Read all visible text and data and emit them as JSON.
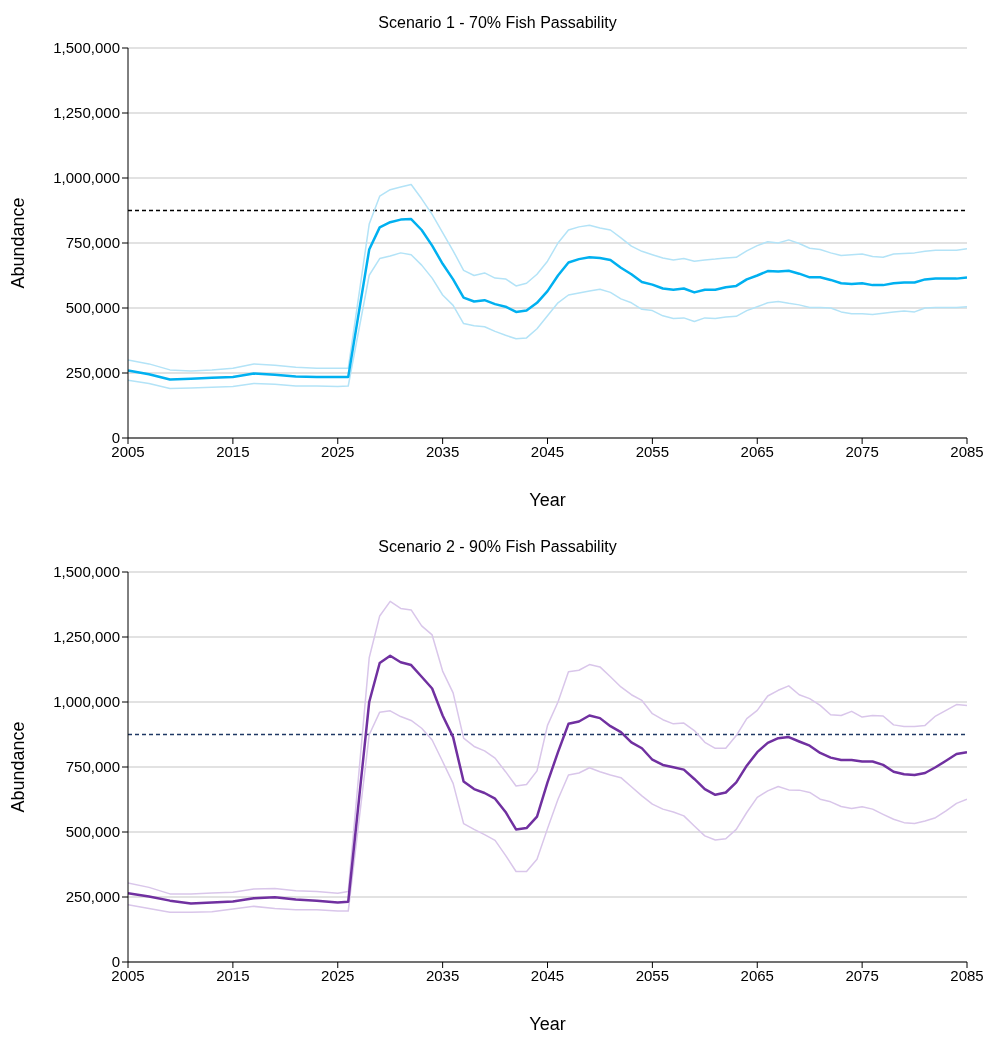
{
  "chart_data": [
    {
      "type": "line",
      "title": "Scenario 1 - 70% Fish Passability",
      "xlabel": "Year",
      "ylabel": "Abundance",
      "x": [
        2005,
        2007,
        2009,
        2011,
        2013,
        2015,
        2017,
        2019,
        2021,
        2023,
        2025,
        2026,
        2028,
        2029,
        2030,
        2031,
        2032,
        2033,
        2034,
        2035,
        2036,
        2037,
        2038,
        2039,
        2040,
        2041,
        2042,
        2043,
        2044,
        2045,
        2046,
        2047,
        2048,
        2049,
        2050,
        2051,
        2052,
        2053,
        2054,
        2055,
        2056,
        2057,
        2058,
        2059,
        2060,
        2061,
        2062,
        2063,
        2064,
        2065,
        2066,
        2067,
        2068,
        2069,
        2070,
        2071,
        2072,
        2073,
        2074,
        2075,
        2076,
        2077,
        2078,
        2079,
        2080,
        2081,
        2082,
        2083,
        2084,
        2085
      ],
      "series": [
        {
          "color": "#00b0f0",
          "values": [
            260000,
            245000,
            225000,
            228000,
            232000,
            235000,
            248000,
            243000,
            237000,
            235000,
            235000,
            235000,
            725000,
            810000,
            830000,
            840000,
            842000,
            800000,
            740000,
            670000,
            610000,
            540000,
            525000,
            530000,
            515000,
            505000,
            485000,
            490000,
            520000,
            565000,
            625000,
            675000,
            688000,
            695000,
            692000,
            685000,
            655000,
            630000,
            600000,
            590000,
            575000,
            570000,
            575000,
            560000,
            570000,
            570000,
            580000,
            585000,
            610000,
            625000,
            642000,
            640000,
            643000,
            632000,
            618000,
            618000,
            608000,
            595000,
            592000,
            595000,
            588000,
            588000,
            595000,
            598000,
            598000,
            610000,
            613000,
            613000,
            613000,
            617000
          ]
        },
        {
          "color": "#b3e3f7",
          "values": [
            300000,
            285000,
            262000,
            258000,
            262000,
            268000,
            285000,
            280000,
            272000,
            268000,
            268000,
            268000,
            823000,
            930000,
            955000,
            965000,
            975000,
            920000,
            860000,
            790000,
            720000,
            645000,
            625000,
            635000,
            615000,
            612000,
            585000,
            595000,
            630000,
            680000,
            750000,
            800000,
            812000,
            818000,
            808000,
            800000,
            770000,
            738000,
            718000,
            705000,
            692000,
            685000,
            690000,
            680000,
            685000,
            688000,
            692000,
            695000,
            720000,
            740000,
            755000,
            750000,
            762000,
            748000,
            730000,
            725000,
            712000,
            702000,
            705000,
            708000,
            698000,
            695000,
            708000,
            710000,
            712000,
            718000,
            722000,
            722000,
            722000,
            728000
          ]
        },
        {
          "color": "#b3e3f7",
          "values": [
            222000,
            210000,
            190000,
            192000,
            195000,
            198000,
            210000,
            207000,
            200000,
            200000,
            198000,
            200000,
            626000,
            690000,
            700000,
            712000,
            705000,
            665000,
            615000,
            550000,
            510000,
            440000,
            432000,
            428000,
            410000,
            395000,
            382000,
            385000,
            420000,
            470000,
            520000,
            550000,
            558000,
            565000,
            572000,
            560000,
            535000,
            520000,
            495000,
            490000,
            470000,
            460000,
            462000,
            448000,
            462000,
            460000,
            465000,
            468000,
            490000,
            505000,
            520000,
            525000,
            518000,
            512000,
            502000,
            502000,
            500000,
            485000,
            478000,
            478000,
            475000,
            480000,
            485000,
            488000,
            485000,
            500000,
            502000,
            502000,
            502000,
            505000
          ]
        }
      ],
      "xlim": [
        2005,
        2085
      ],
      "xticks": [
        2005,
        2015,
        2025,
        2035,
        2045,
        2055,
        2065,
        2075,
        2085
      ],
      "ylim": [
        0,
        1500000
      ],
      "yticks": [
        {
          "value": 0,
          "label": "0"
        },
        {
          "value": 250000,
          "label": "250,000"
        },
        {
          "value": 500000,
          "label": "500,000"
        },
        {
          "value": 750000,
          "label": "750,000"
        },
        {
          "value": 1000000,
          "label": "1,000,000"
        },
        {
          "value": 1250000,
          "label": "1,250,000"
        },
        {
          "value": 1500000,
          "label": "1,500,000"
        }
      ],
      "grid": "y",
      "ref_lines": [
        {
          "axis": "y",
          "value": 875000,
          "color": "#000000",
          "line_style": "dashed"
        }
      ]
    },
    {
      "type": "line",
      "title": "Scenario 2 - 90% Fish Passability",
      "xlabel": "Year",
      "ylabel": "Abundance",
      "x": [
        2005,
        2007,
        2009,
        2011,
        2013,
        2015,
        2017,
        2019,
        2021,
        2023,
        2025,
        2026,
        2028,
        2029,
        2030,
        2031,
        2032,
        2033,
        2034,
        2035,
        2036,
        2037,
        2038,
        2039,
        2040,
        2041,
        2042,
        2043,
        2044,
        2045,
        2046,
        2047,
        2048,
        2049,
        2050,
        2051,
        2052,
        2053,
        2054,
        2055,
        2056,
        2057,
        2058,
        2059,
        2060,
        2061,
        2062,
        2063,
        2064,
        2065,
        2066,
        2067,
        2068,
        2069,
        2070,
        2071,
        2072,
        2073,
        2074,
        2075,
        2076,
        2077,
        2078,
        2079,
        2080,
        2081,
        2082,
        2083,
        2084,
        2085
      ],
      "series": [
        {
          "color": "#7030a0",
          "values": [
            264000,
            252000,
            236000,
            225000,
            229000,
            233000,
            245000,
            249000,
            240000,
            236000,
            229000,
            232000,
            1000000,
            1150000,
            1178000,
            1153000,
            1142000,
            1097000,
            1052000,
            948000,
            865000,
            694000,
            665000,
            650000,
            628000,
            577000,
            510000,
            515000,
            559000,
            691000,
            807000,
            916000,
            925000,
            948000,
            938000,
            907000,
            884000,
            845000,
            822000,
            778000,
            758000,
            749000,
            740000,
            704000,
            665000,
            643000,
            652000,
            691000,
            755000,
            807000,
            843000,
            861000,
            865000,
            848000,
            832000,
            804000,
            786000,
            777000,
            777000,
            771000,
            771000,
            758000,
            732000,
            722000,
            719000,
            727000,
            749000,
            774000,
            800000,
            807000
          ]
        },
        {
          "color": "#d9c6ea",
          "values": [
            304000,
            287000,
            262000,
            262000,
            265000,
            268000,
            281000,
            283000,
            274000,
            271000,
            264000,
            271000,
            1170000,
            1331000,
            1387000,
            1360000,
            1354000,
            1293000,
            1258000,
            1119000,
            1035000,
            861000,
            829000,
            812000,
            784000,
            732000,
            677000,
            683000,
            735000,
            910000,
            1000000,
            1116000,
            1122000,
            1144000,
            1135000,
            1097000,
            1058000,
            1028000,
            1006000,
            955000,
            932000,
            916000,
            919000,
            890000,
            845000,
            822000,
            822000,
            871000,
            936000,
            968000,
            1023000,
            1045000,
            1062000,
            1028000,
            1013000,
            987000,
            951000,
            948000,
            964000,
            942000,
            948000,
            946000,
            912000,
            906000,
            906000,
            910000,
            946000,
            968000,
            990000,
            987000
          ]
        },
        {
          "color": "#d9c6ea",
          "values": [
            220000,
            206000,
            191000,
            191000,
            193000,
            204000,
            214000,
            206000,
            201000,
            201000,
            196000,
            196000,
            874000,
            961000,
            966000,
            944000,
            929000,
            899000,
            854000,
            771000,
            687000,
            532000,
            510000,
            490000,
            468000,
            410000,
            348000,
            348000,
            395000,
            513000,
            626000,
            719000,
            727000,
            747000,
            732000,
            719000,
            709000,
            674000,
            639000,
            607000,
            588000,
            577000,
            562000,
            523000,
            485000,
            469000,
            474000,
            510000,
            575000,
            633000,
            658000,
            675000,
            662000,
            661000,
            652000,
            626000,
            616000,
            598000,
            590000,
            597000,
            588000,
            568000,
            549000,
            536000,
            533000,
            542000,
            555000,
            581000,
            610000,
            626000
          ]
        }
      ],
      "xlim": [
        2005,
        2085
      ],
      "xticks": [
        2005,
        2015,
        2025,
        2035,
        2045,
        2055,
        2065,
        2075,
        2085
      ],
      "ylim": [
        0,
        1500000
      ],
      "yticks": [
        {
          "value": 0,
          "label": "0"
        },
        {
          "value": 250000,
          "label": "250,000"
        },
        {
          "value": 500000,
          "label": "500,000"
        },
        {
          "value": 750000,
          "label": "750,000"
        },
        {
          "value": 1000000,
          "label": "1,000,000"
        },
        {
          "value": 1250000,
          "label": "1,250,000"
        },
        {
          "value": 1500000,
          "label": "1,500,000"
        }
      ],
      "grid": "y",
      "ref_lines": [
        {
          "axis": "y",
          "value": 875000,
          "color": "#1f3864",
          "line_style": "dashed"
        }
      ]
    }
  ]
}
